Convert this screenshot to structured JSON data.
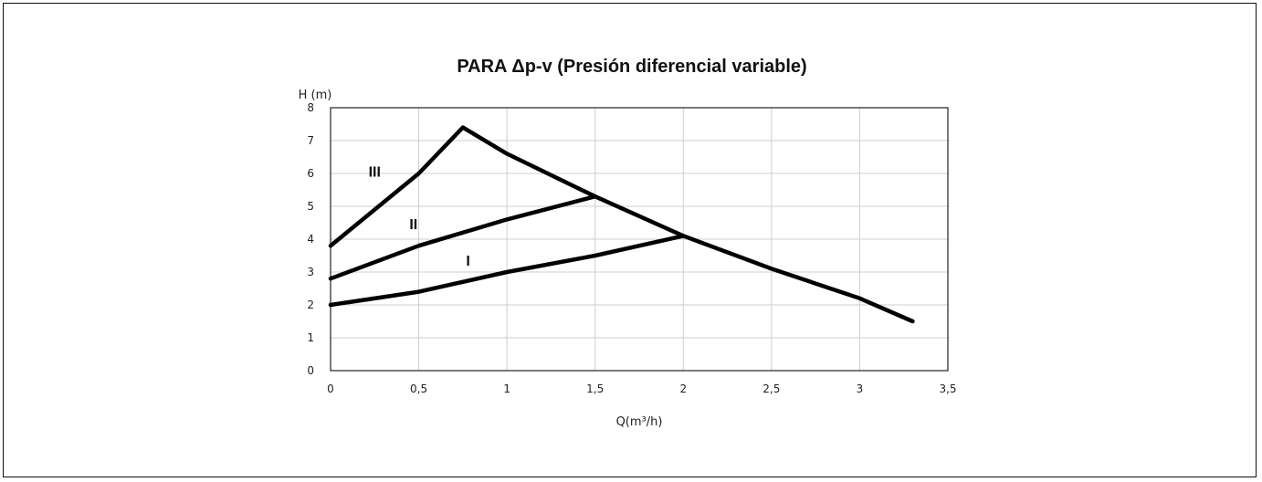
{
  "chart_data": {
    "type": "line",
    "title": "PARA Δp-v (Presión diferencial variable)",
    "xlabel": "Q(m³/h)",
    "ylabel": "H (m)",
    "xlim": [
      0,
      3.5
    ],
    "ylim": [
      0,
      8
    ],
    "x_ticks": [
      "0",
      "0,5",
      "1",
      "1,5",
      "2",
      "2,5",
      "3",
      "3,5"
    ],
    "y_ticks": [
      "0",
      "1",
      "2",
      "3",
      "4",
      "5",
      "6",
      "7",
      "8"
    ],
    "grid": true,
    "series": [
      {
        "name": "I",
        "points": [
          [
            0,
            2.0
          ],
          [
            0.5,
            2.4
          ],
          [
            1.0,
            3.0
          ],
          [
            1.5,
            3.5
          ],
          [
            2.0,
            4.1
          ]
        ]
      },
      {
        "name": "II",
        "points": [
          [
            0,
            2.8
          ],
          [
            0.5,
            3.8
          ],
          [
            1.0,
            4.6
          ],
          [
            1.5,
            5.3
          ]
        ]
      },
      {
        "name": "III",
        "points": [
          [
            0,
            3.8
          ],
          [
            0.5,
            6.0
          ],
          [
            0.75,
            7.4
          ],
          [
            1.0,
            6.6
          ],
          [
            1.5,
            5.3
          ],
          [
            2.0,
            4.1
          ],
          [
            2.5,
            3.1
          ],
          [
            3.0,
            2.2
          ],
          [
            3.3,
            1.5
          ]
        ]
      }
    ],
    "series_label_positions": {
      "I": [
        0.78,
        3.2
      ],
      "II": [
        0.47,
        4.3
      ],
      "III": [
        0.25,
        5.9
      ]
    }
  }
}
